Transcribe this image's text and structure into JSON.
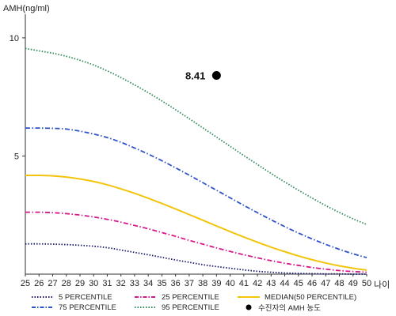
{
  "chart_data": {
    "type": "line",
    "title": "",
    "ylabel": "AMH(ng/ml)",
    "xlabel": "나이",
    "x": [
      25,
      26,
      27,
      28,
      29,
      30,
      31,
      32,
      33,
      34,
      35,
      36,
      37,
      38,
      39,
      40,
      41,
      42,
      43,
      44,
      45,
      46,
      47,
      48,
      49,
      50
    ],
    "xlim": [
      25,
      50
    ],
    "ylim": [
      0,
      11
    ],
    "yticks": [
      5,
      10
    ],
    "grid": false,
    "legend_position": "bottom",
    "series": [
      {
        "name": "5 PERCENTILE",
        "color": "#1a1a6e",
        "dash": "dotted",
        "values": [
          1.28,
          1.28,
          1.27,
          1.25,
          1.22,
          1.18,
          1.12,
          1.02,
          0.92,
          0.82,
          0.71,
          0.6,
          0.5,
          0.4,
          0.32,
          0.25,
          0.18,
          0.12,
          0.08,
          0.05,
          0.03,
          0.02,
          0.01,
          0.01,
          0.0,
          0.0
        ]
      },
      {
        "name": "25 PERCENTILE",
        "color": "#d6188a",
        "dash": "dashdot",
        "values": [
          2.62,
          2.62,
          2.6,
          2.56,
          2.5,
          2.42,
          2.32,
          2.2,
          2.06,
          1.92,
          1.76,
          1.6,
          1.43,
          1.27,
          1.11,
          0.96,
          0.82,
          0.69,
          0.57,
          0.46,
          0.37,
          0.28,
          0.21,
          0.15,
          0.11,
          0.08
        ]
      },
      {
        "name": "MEDIAN(50 PERCENTILE)",
        "color": "#f2c40c",
        "dash": "solid",
        "values": [
          4.18,
          4.18,
          4.16,
          4.11,
          4.03,
          3.92,
          3.78,
          3.61,
          3.42,
          3.21,
          2.99,
          2.76,
          2.52,
          2.28,
          2.04,
          1.8,
          1.57,
          1.35,
          1.14,
          0.95,
          0.77,
          0.61,
          0.47,
          0.35,
          0.25,
          0.17
        ]
      },
      {
        "name": "75 PERCENTILE",
        "color": "#2f52c8",
        "dash": "dashdot",
        "values": [
          6.18,
          6.18,
          6.17,
          6.14,
          6.05,
          5.93,
          5.78,
          5.58,
          5.34,
          5.08,
          4.8,
          4.5,
          4.19,
          3.87,
          3.55,
          3.23,
          2.91,
          2.6,
          2.3,
          2.01,
          1.74,
          1.49,
          1.26,
          1.05,
          0.86,
          0.7
        ]
      },
      {
        "name": "95 PERCENTILE",
        "color": "#2e8b57",
        "dash": "dotted",
        "values": [
          9.55,
          9.45,
          9.35,
          9.22,
          9.05,
          8.85,
          8.6,
          8.32,
          8.01,
          7.68,
          7.33,
          6.96,
          6.58,
          6.19,
          5.8,
          5.41,
          5.02,
          4.64,
          4.26,
          3.9,
          3.55,
          3.22,
          2.9,
          2.61,
          2.34,
          2.1
        ]
      }
    ],
    "points": [
      {
        "name": "수진자의 AMH 농도",
        "x": 39,
        "y": 8.41,
        "label": "8.41",
        "color": "#000000"
      }
    ]
  }
}
